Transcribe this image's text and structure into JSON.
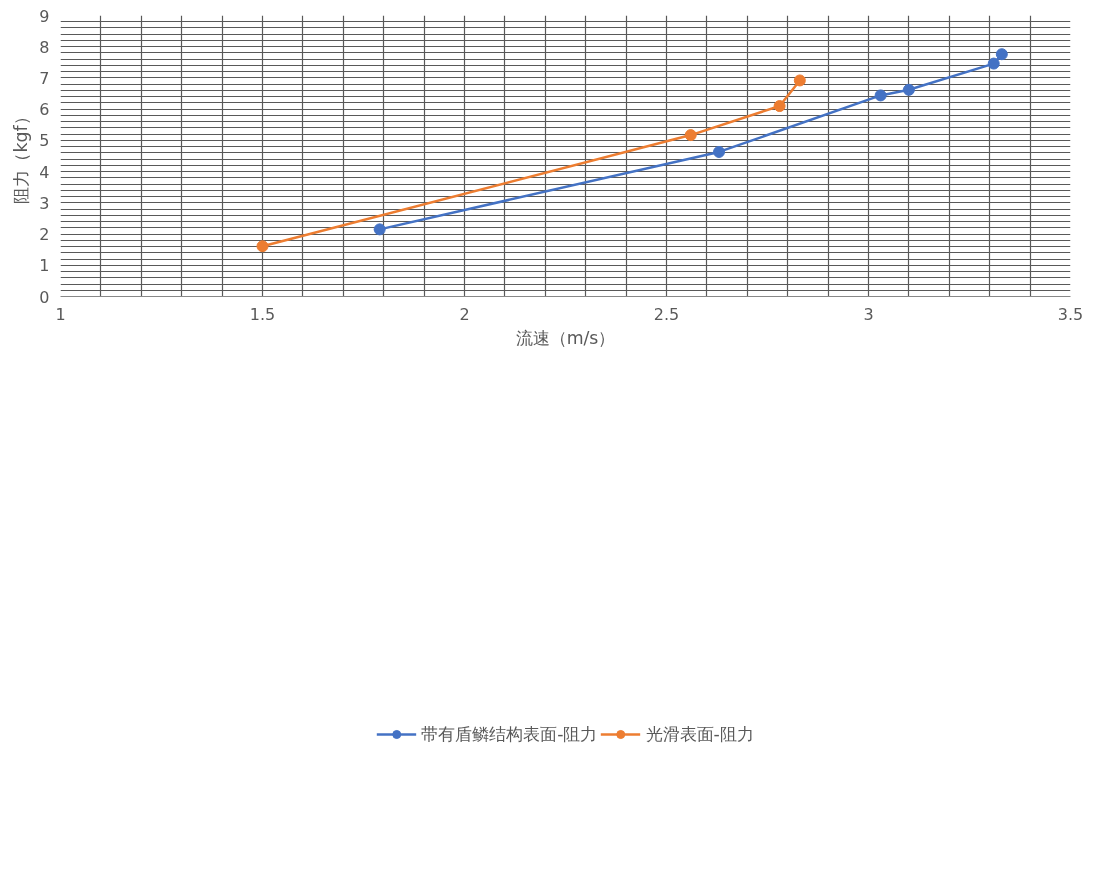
{
  "chart_data": {
    "type": "line",
    "xlabel": "流速（m/s）",
    "ylabel": "阻力（kgf）",
    "xlim": [
      1,
      3.5
    ],
    "ylim": [
      0,
      9
    ],
    "xticks": [
      1,
      {
        "value": 1.1,
        "label": null
      },
      {
        "value": 1.2,
        "label": null
      },
      {
        "value": 1.3,
        "label": null
      },
      {
        "value": 1.4,
        "label": null
      },
      1.5,
      {
        "value": 1.6,
        "label": null
      },
      {
        "value": 1.7,
        "label": null
      },
      {
        "value": 1.8,
        "label": null
      },
      {
        "value": 1.9,
        "label": null
      },
      2,
      {
        "value": 2.1,
        "label": null
      },
      {
        "value": 2.2,
        "label": null
      },
      {
        "value": 2.3,
        "label": null
      },
      {
        "value": 2.4,
        "label": null
      },
      2.5,
      {
        "value": 2.6,
        "label": null
      },
      {
        "value": 2.7,
        "label": null
      },
      {
        "value": 2.8,
        "label": null
      },
      {
        "value": 2.9,
        "label": null
      },
      3,
      {
        "value": 3.1,
        "label": null
      },
      {
        "value": 3.2,
        "label": null
      },
      {
        "value": 3.3,
        "label": null
      },
      {
        "value": 3.4,
        "label": null
      },
      3.5
    ],
    "yticks": [
      0,
      {
        "value": 0.2,
        "label": null
      },
      {
        "value": 0.4,
        "label": null
      },
      {
        "value": 0.6,
        "label": null
      },
      {
        "value": 0.8,
        "label": null
      },
      1,
      {
        "value": 1.2,
        "label": null
      },
      {
        "value": 1.4,
        "label": null
      },
      {
        "value": 1.6,
        "label": null
      },
      {
        "value": 1.8,
        "label": null
      },
      2,
      {
        "value": 2.2,
        "label": null
      },
      {
        "value": 2.4,
        "label": null
      },
      {
        "value": 2.6,
        "label": null
      },
      {
        "value": 2.8,
        "label": null
      },
      3,
      {
        "value": 3.2,
        "label": null
      },
      {
        "value": 3.4,
        "label": null
      },
      {
        "value": 3.6,
        "label": null
      },
      {
        "value": 3.8,
        "label": null
      },
      4,
      {
        "value": 4.2,
        "label": null
      },
      {
        "value": 4.4,
        "label": null
      },
      {
        "value": 4.6,
        "label": null
      },
      {
        "value": 4.8,
        "label": null
      },
      5,
      {
        "value": 5.2,
        "label": null
      },
      {
        "value": 5.4,
        "label": null
      },
      {
        "value": 5.6,
        "label": null
      },
      {
        "value": 5.8,
        "label": null
      },
      6,
      {
        "value": 6.2,
        "label": null
      },
      {
        "value": 6.4,
        "label": null
      },
      {
        "value": 6.6,
        "label": null
      },
      {
        "value": 6.8,
        "label": null
      },
      7,
      {
        "value": 7.2,
        "label": null
      },
      {
        "value": 7.4,
        "label": null
      },
      {
        "value": 7.6,
        "label": null
      },
      {
        "value": 7.8,
        "label": null
      },
      8,
      {
        "value": 8.2,
        "label": null
      },
      {
        "value": 8.4,
        "label": null
      },
      {
        "value": 8.6,
        "label": null
      },
      {
        "value": 8.8,
        "label": null
      },
      9
    ],
    "grid": true,
    "legend": "bottom",
    "marker": "circle",
    "series": [
      {
        "name": "带有盾鳞结构表面-阻力",
        "color": "#4472c4",
        "x": [
          1.79,
          2.63,
          3.03,
          3.1,
          3.31,
          3.33
        ],
        "values": [
          2.15,
          4.63,
          6.44,
          6.62,
          7.46,
          7.76
        ]
      },
      {
        "name": "光滑表面-阻力",
        "color": "#ed7d31",
        "x": [
          1.5,
          2.56,
          2.78,
          2.83
        ],
        "values": [
          1.61,
          5.17,
          6.1,
          6.92
        ]
      }
    ]
  }
}
